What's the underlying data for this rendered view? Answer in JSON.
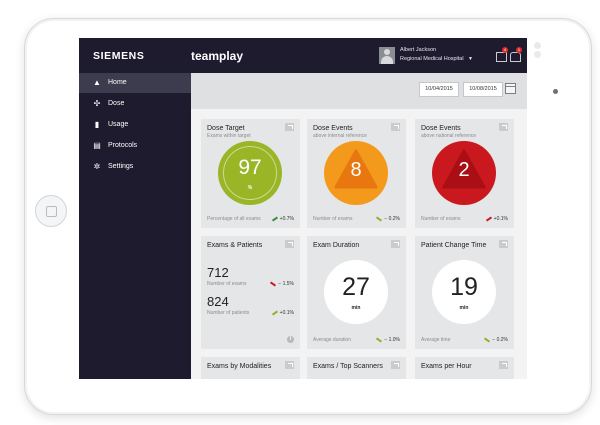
{
  "header": {
    "brand": "SIEMENS",
    "app_name": "teamplay",
    "user_name": "Albert Jackson",
    "hospital": "Regional Medical Hospital",
    "notif_count_1": "4",
    "notif_count_2": "1"
  },
  "sidebar": {
    "items": [
      {
        "label": "Home",
        "icon": "home-icon",
        "active": true
      },
      {
        "label": "Dose",
        "icon": "radiation-icon"
      },
      {
        "label": "Usage",
        "icon": "bar-chart-icon"
      },
      {
        "label": "Protocols",
        "icon": "document-icon"
      },
      {
        "label": "Settings",
        "icon": "gear-icon"
      }
    ]
  },
  "filters": {
    "date_from": "10/04/2015",
    "date_to": "10/08/2015"
  },
  "cards": {
    "dose_target": {
      "title": "Dose Target",
      "subtitle": "Exams within target",
      "value": "97",
      "unit": "%",
      "footer": "Percentage of all exams",
      "trend": "+0.7%",
      "color": "#9ab526"
    },
    "dose_events_orange": {
      "title": "Dose Events",
      "subtitle": "above internal reference",
      "value": "8",
      "footer": "Number of exams",
      "trend": "− 0.2%",
      "color": "#f39a1c"
    },
    "dose_events_red": {
      "title": "Dose Events",
      "subtitle": "above national reference",
      "value": "2",
      "footer": "Number of exams",
      "trend": "+0.1%",
      "color": "#c9191e"
    },
    "exams_patients": {
      "title": "Exams & Patients",
      "exams_value": "712",
      "exams_label": "Number of exams",
      "exams_trend": "− 1.5%",
      "patients_value": "824",
      "patients_label": "Number of patients",
      "patients_trend": "+0.1%"
    },
    "exam_duration": {
      "title": "Exam Duration",
      "value": "27",
      "unit": "min",
      "footer": "Average duration",
      "trend": "− 1.0%"
    },
    "patient_change": {
      "title": "Patient Change Time",
      "value": "19",
      "unit": "min",
      "footer": "Average time",
      "trend": "− 0.2%"
    },
    "bottom_titles": [
      "Exams by Modalities",
      "Exams / Top Scanners",
      "Exams per Hour"
    ]
  }
}
